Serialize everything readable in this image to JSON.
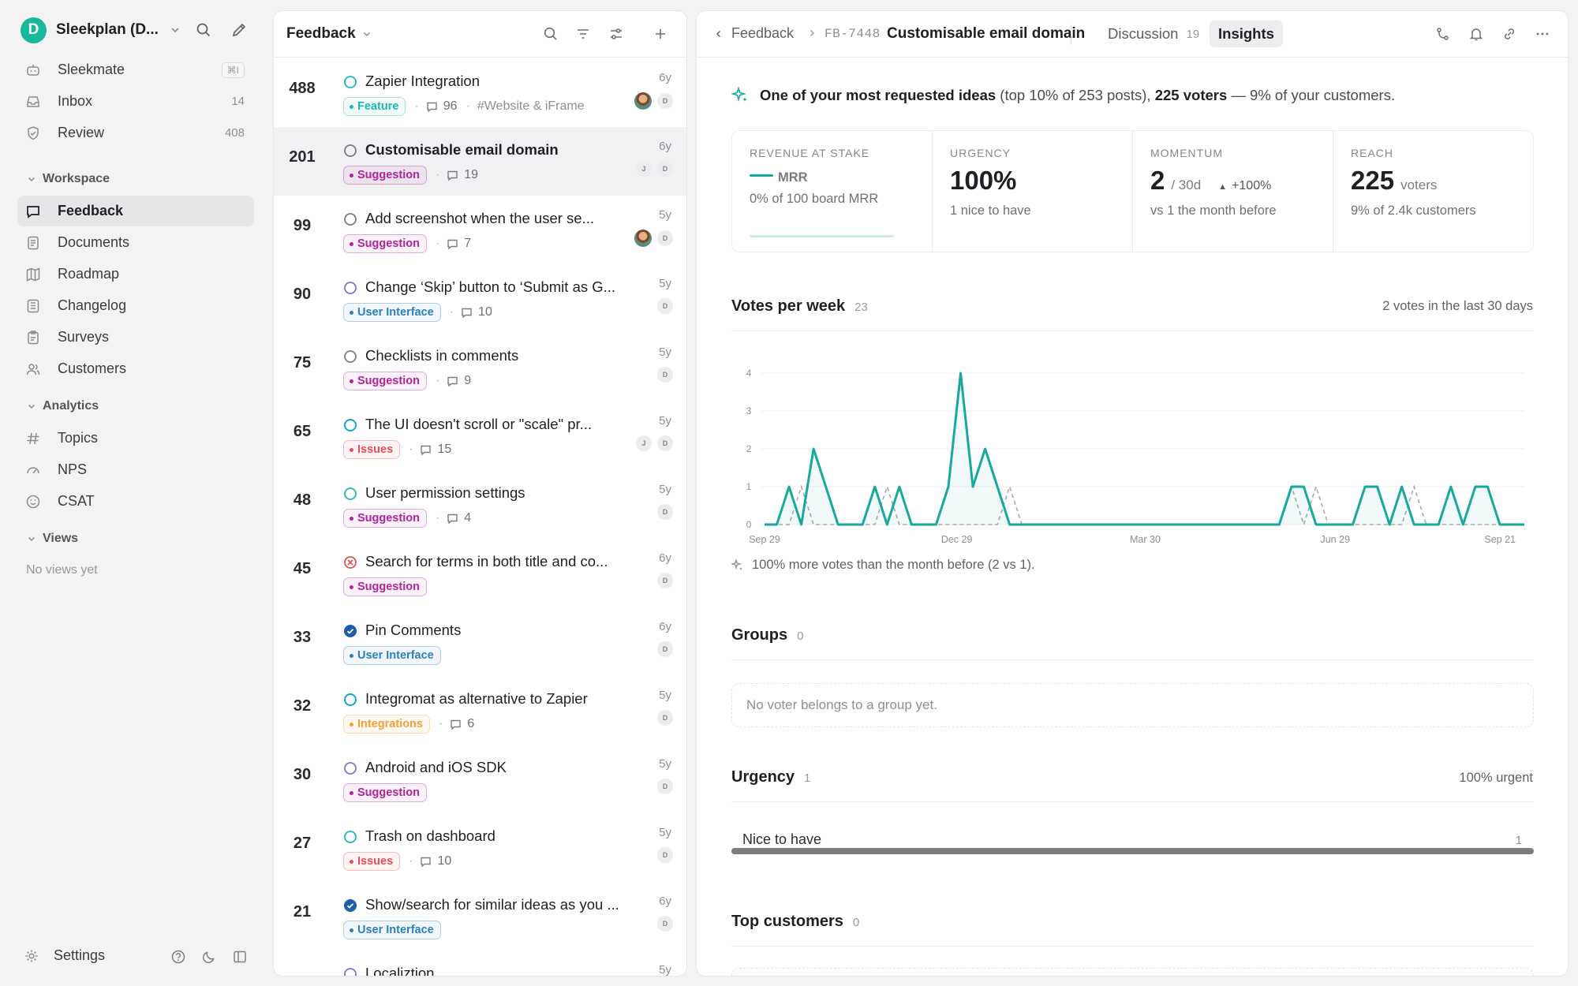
{
  "sidebar": {
    "workspace_initial": "D",
    "workspace_name": "Sleekplan (D...",
    "top_items": [
      {
        "label": "Sleekmate",
        "shortcut": "⌘I"
      },
      {
        "label": "Inbox",
        "count": "14"
      },
      {
        "label": "Review",
        "count": "408"
      }
    ],
    "workspace_section": "Workspace",
    "workspace_items": [
      {
        "label": "Feedback"
      },
      {
        "label": "Documents"
      },
      {
        "label": "Roadmap"
      },
      {
        "label": "Changelog"
      },
      {
        "label": "Surveys"
      },
      {
        "label": "Customers"
      }
    ],
    "analytics_section": "Analytics",
    "analytics_items": [
      {
        "label": "Topics"
      },
      {
        "label": "NPS"
      },
      {
        "label": "CSAT"
      }
    ],
    "views_section": "Views",
    "views_empty": "No views yet",
    "settings_label": "Settings"
  },
  "list": {
    "title": "Feedback",
    "items": [
      {
        "votes": "488",
        "title": "Zapier Integration",
        "status": "open",
        "tag": "Feature",
        "tag_color": "#1fb8b0",
        "comments": "96",
        "extra": "#Website & iFrame",
        "age": "6y",
        "avatars": [
          "photo",
          "D"
        ]
      },
      {
        "votes": "201",
        "title": "Customisable email domain",
        "status": "neutral",
        "tag": "Suggestion",
        "tag_color": "#b0259e",
        "comments": "19",
        "age": "6y",
        "avatars": [
          "J",
          "D"
        ]
      },
      {
        "votes": "99",
        "title": "Add screenshot when the user se...",
        "status": "neutral",
        "tag": "Suggestion",
        "tag_color": "#b0259e",
        "comments": "7",
        "age": "5y",
        "avatars": [
          "photo",
          "D"
        ]
      },
      {
        "votes": "90",
        "title": "Change ‘Skip’ button to ‘Submit as G...",
        "status": "planned",
        "tag": "User Interface",
        "tag_color": "#2f7fb8",
        "comments": "10",
        "age": "5y",
        "avatars": [
          "D"
        ]
      },
      {
        "votes": "75",
        "title": "Checklists in comments",
        "status": "neutral",
        "tag": "Suggestion",
        "tag_color": "#b0259e",
        "comments": "9",
        "age": "5y",
        "avatars": [
          "D"
        ]
      },
      {
        "votes": "65",
        "title": "The UI doesn't scroll or \"scale\" pr...",
        "status": "progress",
        "tag": "Issues",
        "tag_color": "#e0505c",
        "comments": "15",
        "age": "5y",
        "avatars": [
          "J",
          "D"
        ]
      },
      {
        "votes": "48",
        "title": "User permission settings",
        "status": "open",
        "tag": "Suggestion",
        "tag_color": "#b0259e",
        "comments": "4",
        "age": "5y",
        "avatars": [
          "D"
        ]
      },
      {
        "votes": "45",
        "title": "Search for terms in both title and co...",
        "status": "rejected",
        "tag": "Suggestion",
        "tag_color": "#b0259e",
        "comments": "",
        "age": "6y",
        "avatars": [
          "D"
        ]
      },
      {
        "votes": "33",
        "title": "Pin Comments",
        "status": "done",
        "tag": "User Interface",
        "tag_color": "#2f7fb8",
        "comments": "",
        "age": "6y",
        "avatars": [
          "D"
        ]
      },
      {
        "votes": "32",
        "title": "Integromat as alternative to Zapier",
        "status": "progress",
        "tag": "Integrations",
        "tag_color": "#f0a13a",
        "comments": "6",
        "age": "5y",
        "avatars": [
          "D"
        ]
      },
      {
        "votes": "30",
        "title": "Android and iOS SDK",
        "status": "planned",
        "tag": "Suggestion",
        "tag_color": "#b0259e",
        "comments": "",
        "age": "5y",
        "avatars": [
          "D"
        ]
      },
      {
        "votes": "27",
        "title": "Trash on dashboard",
        "status": "open",
        "tag": "Issues",
        "tag_color": "#e0505c",
        "comments": "10",
        "age": "5y",
        "avatars": [
          "D"
        ]
      },
      {
        "votes": "21",
        "title": "Show/search for similar ideas as you ...",
        "status": "done",
        "tag": "User Interface",
        "tag_color": "#2f7fb8",
        "comments": "",
        "age": "6y",
        "avatars": [
          "D"
        ]
      },
      {
        "votes": "",
        "title": "Localiztion",
        "status": "planned",
        "tag": "",
        "tag_color": "#2f7fb8",
        "comments": "",
        "age": "5y",
        "avatars": []
      }
    ]
  },
  "detail": {
    "breadcrumb_back": "Feedback",
    "post_id": "FB-7448",
    "post_title": "Customisable email domain",
    "tabs": [
      {
        "label": "Discussion",
        "count": "19"
      },
      {
        "label": "Insights",
        "count": ""
      }
    ],
    "banner": {
      "strong1": "One of your most requested ideas",
      "mid": " (top 10% of 253 posts), ",
      "strong2": "225 voters",
      "tail": " — 9% of your customers."
    },
    "stats": {
      "revenue": {
        "label": "REVENUE AT STAKE",
        "unit": "MRR",
        "sub": "0% of 100 board MRR"
      },
      "urgency": {
        "label": "URGENCY",
        "value": "100%",
        "sub": "1 nice to have"
      },
      "momentum": {
        "label": "MOMENTUM",
        "value": "2",
        "unit": "/ 30d",
        "change": "+100%",
        "sub": "vs 1 the month before"
      },
      "reach": {
        "label": "REACH",
        "value": "225",
        "unit": "voters",
        "sub": "9% of 2.4k customers"
      }
    },
    "votes_title": "Votes per week",
    "votes_count": "23",
    "votes_right": "2 votes in the last 30 days",
    "votes_note": "100% more votes than the month before (2 vs 1).",
    "groups_title": "Groups",
    "groups_count": "0",
    "groups_empty": "No voter belongs to a group yet.",
    "urgency_title": "Urgency",
    "urgency_count": "1",
    "urgency_right": "100% urgent",
    "urgency_item": {
      "label": "Nice to have",
      "count": "1",
      "fraction": 1.0
    },
    "top_customers_title": "Top customers",
    "top_customers_count": "0",
    "colors": {
      "accent": "#17a999",
      "previous": "#a8a8ad"
    }
  },
  "chart_data": {
    "type": "line",
    "title": "Votes per week",
    "ylim": [
      0,
      4
    ],
    "yticks": [
      "0",
      "1",
      "2",
      "3",
      "4"
    ],
    "xtick_labels": [
      "Sep 29",
      "Dec 29",
      "Mar 30",
      "Jun 29",
      "Sep 21"
    ],
    "grid": true,
    "series": [
      {
        "values": [
          0,
          0,
          1,
          0,
          2,
          1,
          0,
          0,
          0,
          1,
          0,
          1,
          0,
          0,
          0,
          1,
          4,
          1,
          2,
          1,
          0,
          0,
          0,
          0,
          0,
          0,
          0,
          0,
          0,
          0,
          0,
          0,
          0,
          0,
          0,
          0,
          0,
          0,
          0,
          0,
          0,
          0,
          0,
          1,
          1,
          0,
          0,
          0,
          0,
          1,
          1,
          0,
          1,
          0,
          0,
          0,
          1,
          0,
          1,
          1,
          0,
          0,
          0
        ]
      },
      {
        "values": [
          0,
          0,
          0,
          1,
          0,
          0,
          0,
          0,
          0,
          0,
          1,
          0,
          0,
          0,
          0,
          0,
          0,
          0,
          0,
          0,
          1,
          0,
          0,
          0,
          0,
          0,
          0,
          0,
          0,
          0,
          0,
          0,
          0,
          0,
          0,
          0,
          0,
          0,
          0,
          0,
          0,
          0,
          0,
          1,
          0,
          1,
          0,
          0,
          0,
          0,
          0,
          0,
          0,
          1,
          0,
          0,
          0,
          0,
          0,
          0,
          0,
          0,
          0
        ]
      }
    ]
  }
}
